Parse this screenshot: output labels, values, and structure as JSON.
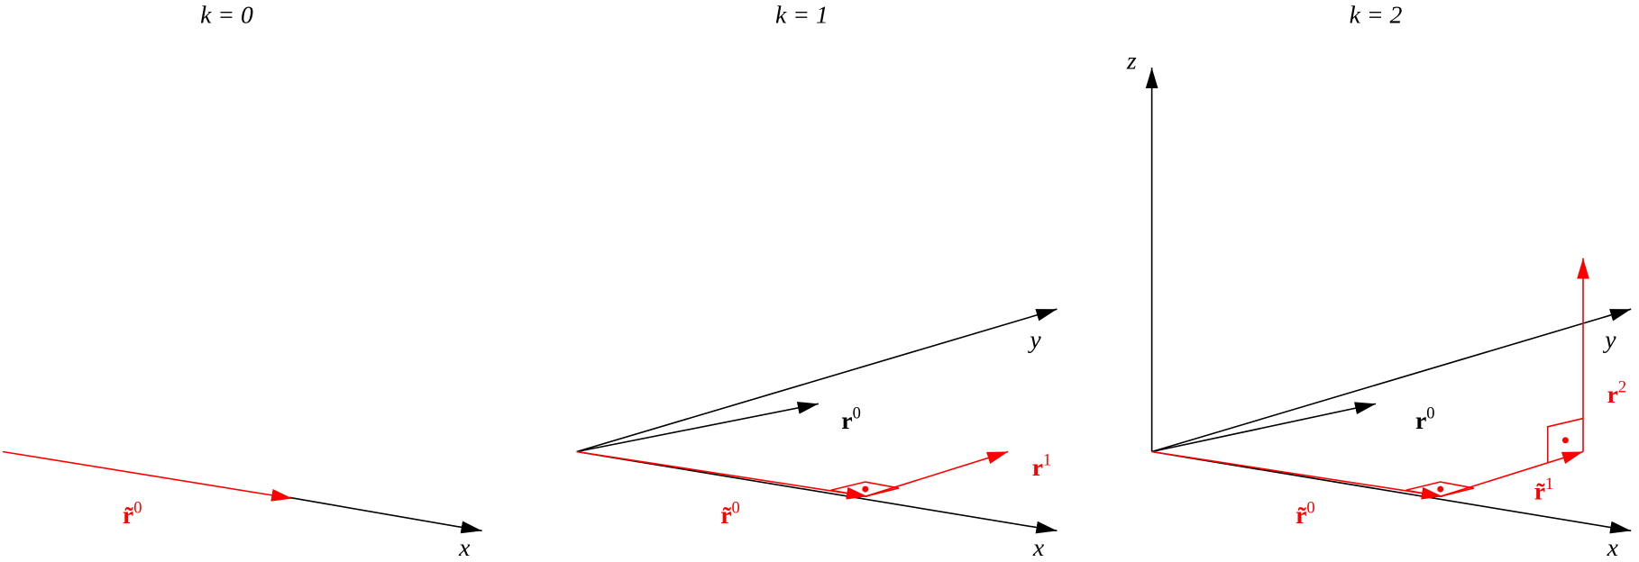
{
  "panels": [
    {
      "title": "k = 0",
      "labels": [
        {
          "base": "r̃",
          "sup": "0"
        },
        {
          "base": "x"
        }
      ]
    },
    {
      "title": "k = 1",
      "labels": [
        {
          "base": "y"
        },
        {
          "base": "r",
          "sup": "0"
        },
        {
          "base": "r",
          "sup": "1"
        },
        {
          "base": "r̃",
          "sup": "0"
        },
        {
          "base": "x"
        }
      ]
    },
    {
      "title": "k = 2",
      "labels": [
        {
          "base": "z"
        },
        {
          "base": "y"
        },
        {
          "base": "r",
          "sup": "0"
        },
        {
          "base": "r",
          "sup": "2"
        },
        {
          "base": "r̃",
          "sup": "1"
        },
        {
          "base": "r̃",
          "sup": "0"
        },
        {
          "base": "x"
        }
      ]
    }
  ]
}
